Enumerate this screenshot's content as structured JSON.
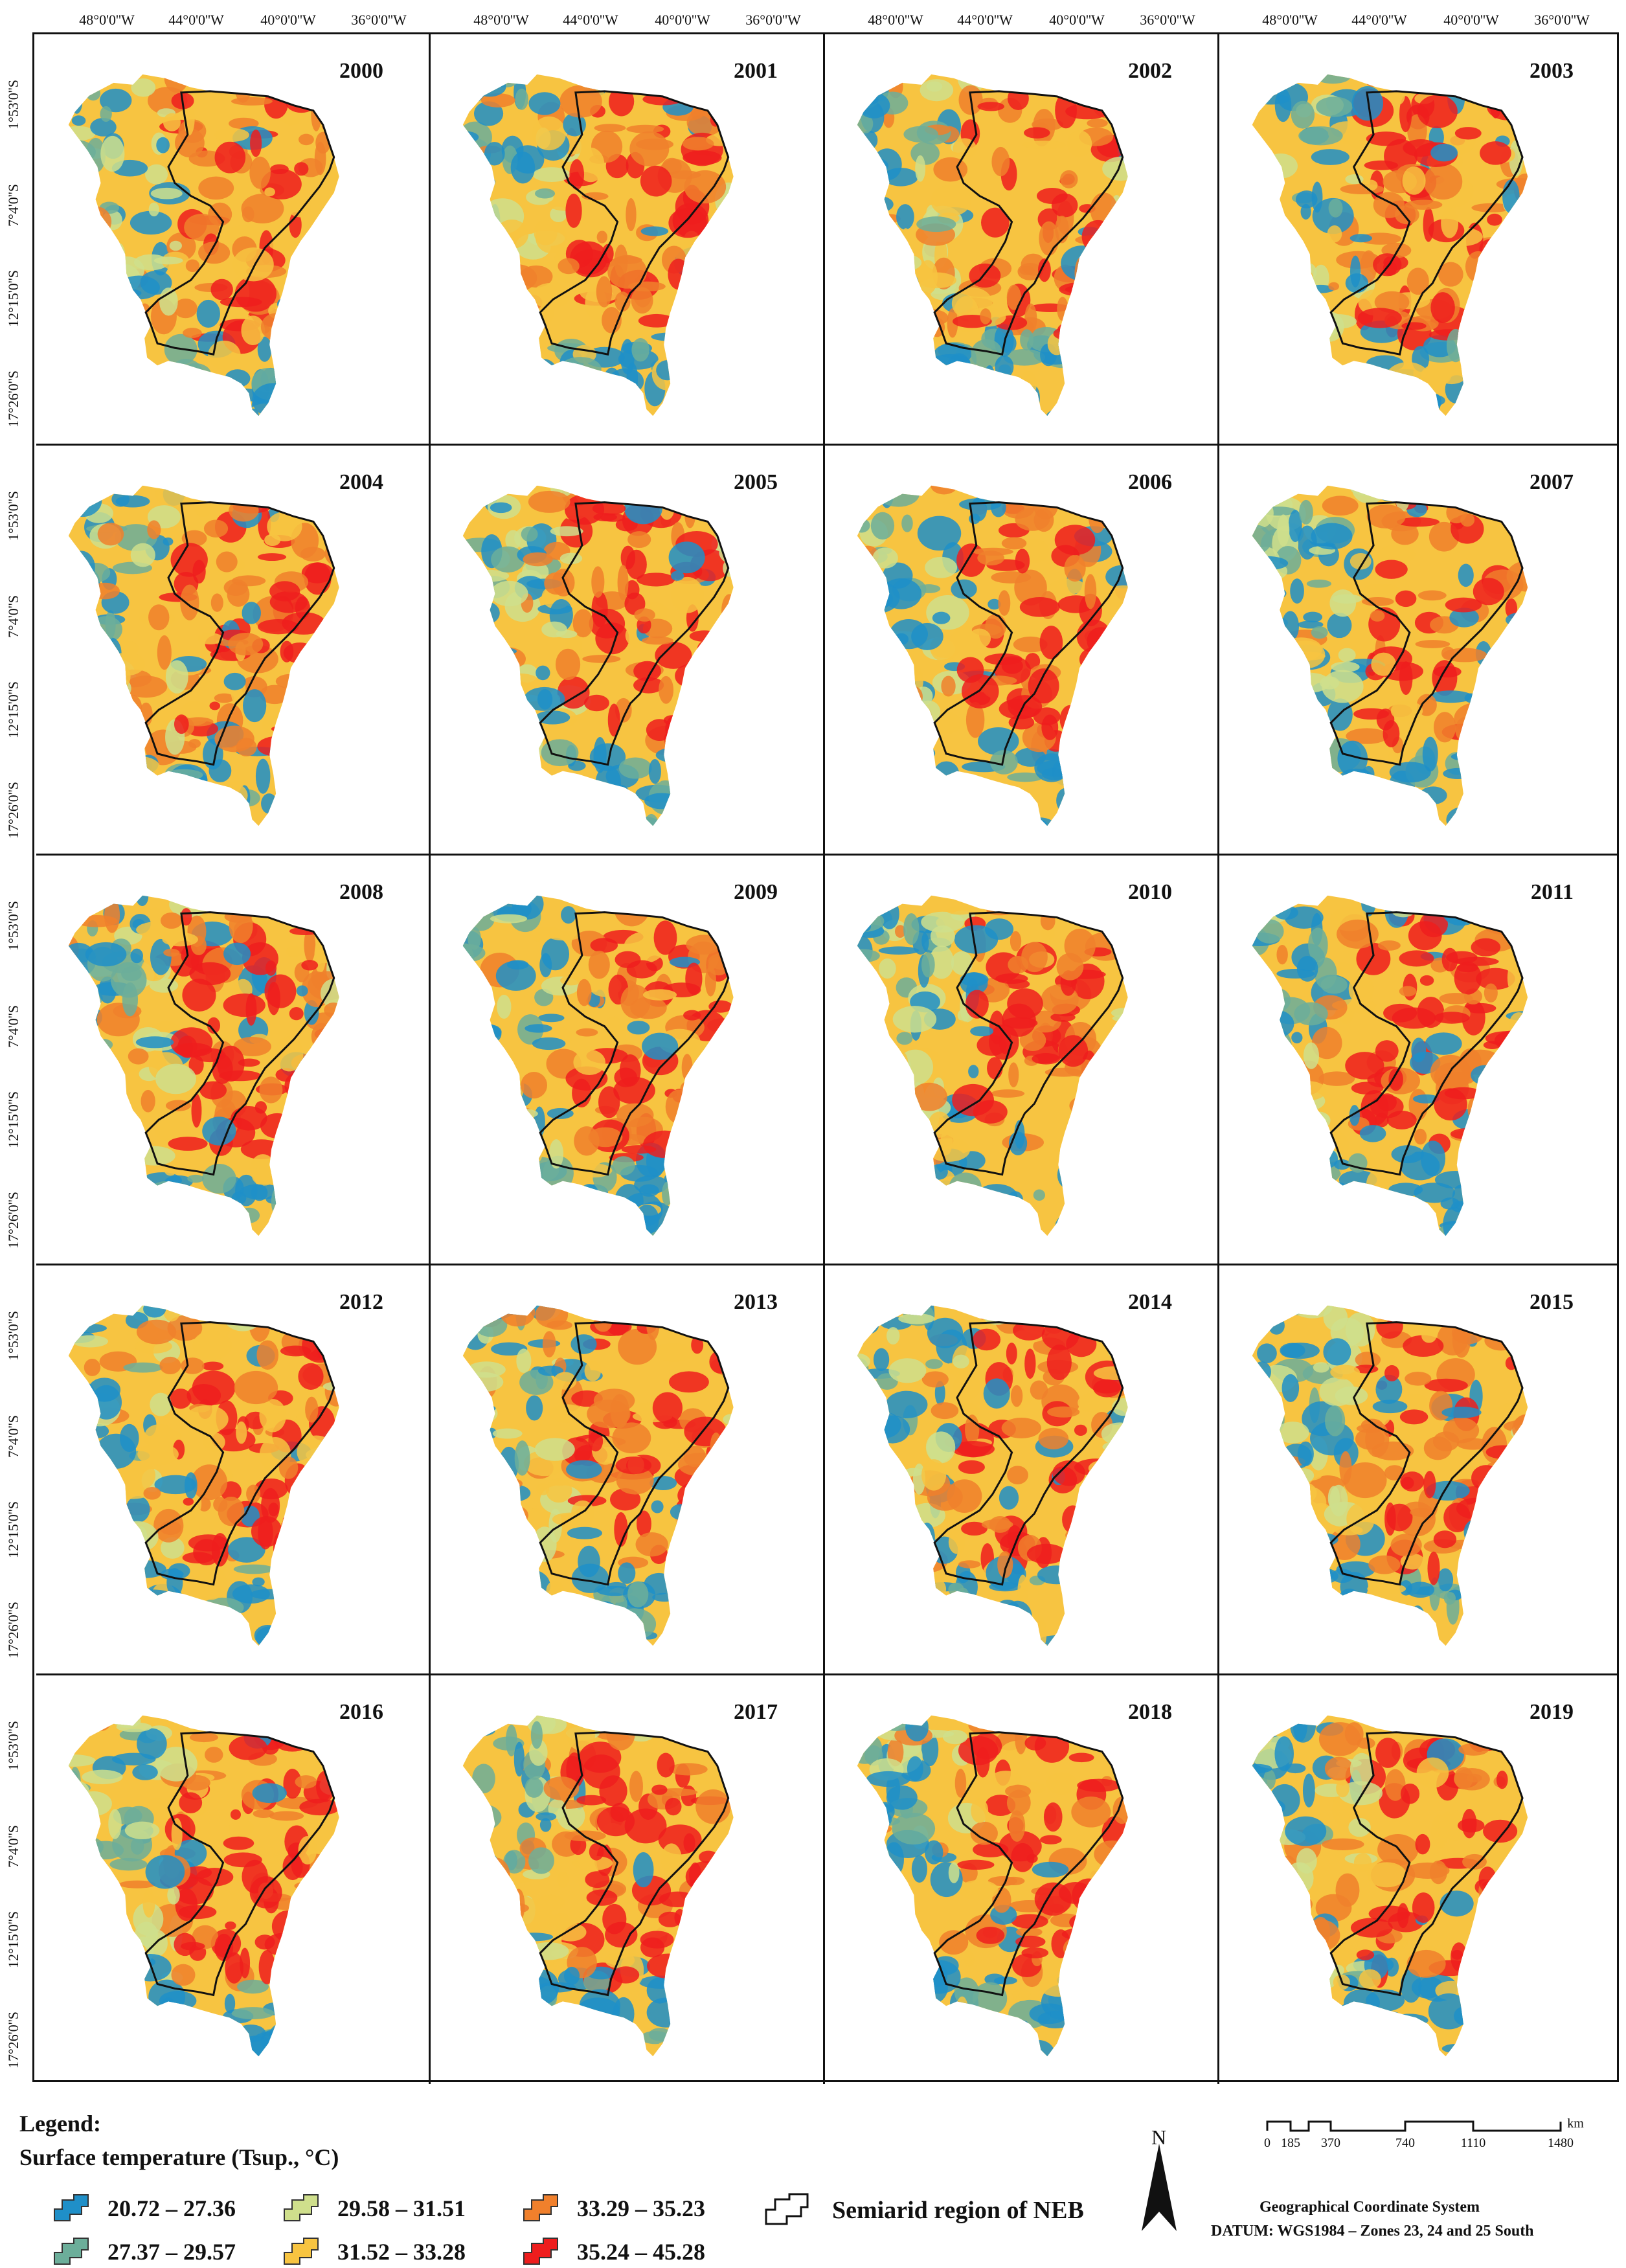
{
  "map": {
    "longitude_labels": [
      "48°0'0''W",
      "44°0'0''W",
      "40°0'0''W",
      "36°0'0''W"
    ],
    "latitude_labels": [
      "1°53'0''S",
      "7°4'0''S",
      "12°15'0''S",
      "17°26'0''S"
    ],
    "years": [
      "2000",
      "2001",
      "2002",
      "2003",
      "2004",
      "2005",
      "2006",
      "2007",
      "2008",
      "2009",
      "2010",
      "2011",
      "2012",
      "2013",
      "2014",
      "2015",
      "2016",
      "2017",
      "2018",
      "2019"
    ]
  },
  "legend": {
    "title": "Legend:",
    "subtitle": "Surface temperature (Tsup., °C)",
    "classes": [
      {
        "label": "20.72 – 27.36",
        "color": "#1f8fc8"
      },
      {
        "label": "27.37 – 29.57",
        "color": "#6cae9a"
      },
      {
        "label": "29.58 – 31.51",
        "color": "#cfdf8c"
      },
      {
        "label": "31.52 – 33.28",
        "color": "#f7c441"
      },
      {
        "label": "33.29 – 35.23",
        "color": "#f0802c"
      },
      {
        "label": "35.24 – 45.28",
        "color": "#ee1d1d"
      }
    ],
    "semiarid_label": "Semiarid region of NEB"
  },
  "north_arrow": {
    "label": "N"
  },
  "scale": {
    "unit": "km",
    "ticks": [
      "0",
      "185",
      "370",
      "740",
      "1110",
      "1480"
    ]
  },
  "projection": {
    "line1": "Geographical Coordinate System",
    "line2": "DATUM: WGS1984 – Zones 23, 24 and 25 South"
  }
}
